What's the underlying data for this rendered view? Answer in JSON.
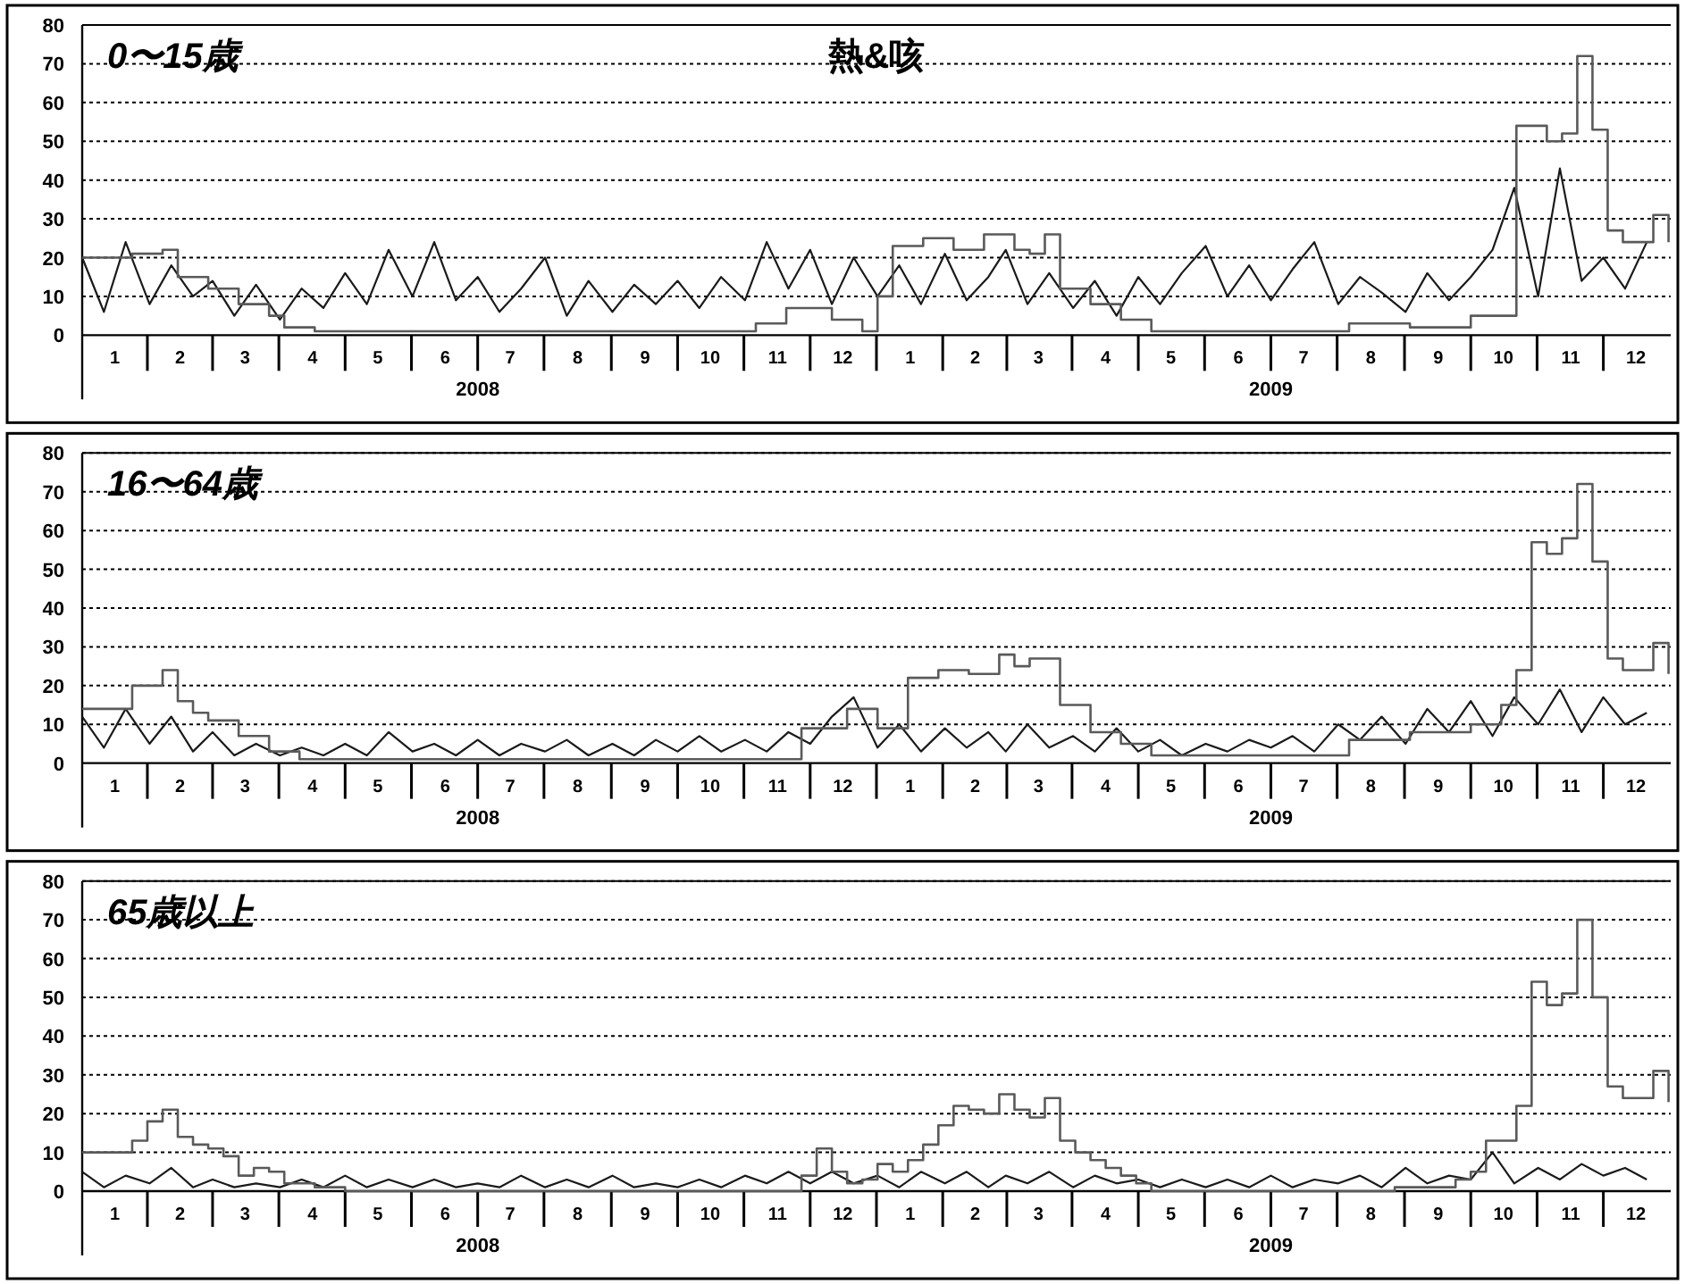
{
  "chart_data": [
    {
      "type": "line",
      "title": "0〜15歳",
      "subtitle": "熱&咳",
      "xlim": [
        "2008-01-01",
        "2010-01-01"
      ],
      "ylim": [
        0,
        80
      ],
      "yticks": [
        0,
        10,
        20,
        30,
        40,
        50,
        60,
        70,
        80
      ],
      "grid": "y",
      "xticks": [
        {
          "value": "2008-01-16",
          "label": "1"
        },
        {
          "value": "2008-02-15",
          "label": "2"
        },
        {
          "value": "2008-03-16",
          "label": "3"
        },
        {
          "value": "2008-04-16",
          "label": "4"
        },
        {
          "value": "2008-05-16",
          "label": "5"
        },
        {
          "value": "2008-06-16",
          "label": "6"
        },
        {
          "value": "2008-07-16",
          "label": "7"
        },
        {
          "value": "2008-08-16",
          "label": "8"
        },
        {
          "value": "2008-09-16",
          "label": "9"
        },
        {
          "value": "2008-10-16",
          "label": "10"
        },
        {
          "value": "2008-11-16",
          "label": "11"
        },
        {
          "value": "2008-12-16",
          "label": "12"
        },
        {
          "value": "2009-01-16",
          "label": "1"
        },
        {
          "value": "2009-02-15",
          "label": "2"
        },
        {
          "value": "2009-03-16",
          "label": "3"
        },
        {
          "value": "2009-04-16",
          "label": "4"
        },
        {
          "value": "2009-05-16",
          "label": "5"
        },
        {
          "value": "2009-06-16",
          "label": "6"
        },
        {
          "value": "2009-07-16",
          "label": "7"
        },
        {
          "value": "2009-08-16",
          "label": "8"
        },
        {
          "value": "2009-09-16",
          "label": "9"
        },
        {
          "value": "2009-10-16",
          "label": "10"
        },
        {
          "value": "2009-11-16",
          "label": "11"
        },
        {
          "value": "2009-12-16",
          "label": "12"
        }
      ],
      "annotations": [
        {
          "text": "2008",
          "x": "2008-07-01"
        },
        {
          "text": "2009",
          "x": "2009-07-01"
        }
      ],
      "series": [
        {
          "type": "line",
          "color": "#1a1a1a",
          "x": [
            "2008-01-01",
            "2008-01-11",
            "2008-01-21",
            "2008-02-01",
            "2008-02-11",
            "2008-02-21",
            "2008-03-01",
            "2008-03-11",
            "2008-03-21",
            "2008-04-01",
            "2008-04-11",
            "2008-04-21",
            "2008-05-01",
            "2008-05-11",
            "2008-05-21",
            "2008-06-01",
            "2008-06-11",
            "2008-06-21",
            "2008-07-01",
            "2008-07-11",
            "2008-07-21",
            "2008-08-01",
            "2008-08-11",
            "2008-08-21",
            "2008-09-01",
            "2008-09-11",
            "2008-09-21",
            "2008-10-01",
            "2008-10-11",
            "2008-10-21",
            "2008-11-01",
            "2008-11-11",
            "2008-11-21",
            "2008-12-01",
            "2008-12-11",
            "2008-12-21",
            "2009-01-01",
            "2009-01-11",
            "2009-01-21",
            "2009-02-01",
            "2009-02-11",
            "2009-02-21",
            "2009-03-01",
            "2009-03-11",
            "2009-03-21",
            "2009-04-01",
            "2009-04-11",
            "2009-04-21",
            "2009-05-01",
            "2009-05-11",
            "2009-05-21",
            "2009-06-01",
            "2009-06-11",
            "2009-06-21",
            "2009-07-01",
            "2009-07-11",
            "2009-07-21",
            "2009-08-01",
            "2009-08-11",
            "2009-08-21",
            "2009-09-01",
            "2009-09-11",
            "2009-09-21",
            "2009-10-01",
            "2009-10-11",
            "2009-10-21",
            "2009-11-01",
            "2009-11-11",
            "2009-11-21",
            "2009-12-01",
            "2009-12-11",
            "2009-12-21"
          ],
          "values": [
            20,
            6,
            24,
            8,
            18,
            10,
            14,
            5,
            13,
            4,
            12,
            7,
            16,
            8,
            22,
            10,
            24,
            9,
            15,
            6,
            12,
            20,
            5,
            14,
            6,
            13,
            8,
            14,
            7,
            15,
            9,
            24,
            12,
            22,
            8,
            20,
            10,
            18,
            8,
            21,
            9,
            15,
            22,
            8,
            16,
            7,
            14,
            5,
            15,
            8,
            16,
            23,
            10,
            18,
            9,
            17,
            24,
            8,
            15,
            11,
            6,
            16,
            9,
            15,
            22,
            38,
            10,
            43,
            14,
            20,
            12,
            24
          ]
        },
        {
          "type": "step",
          "color": "#5a5a5a",
          "x": [
            "2008-01-01",
            "2008-01-24",
            "2008-02-07",
            "2008-02-14",
            "2008-02-28",
            "2008-03-13",
            "2008-03-27",
            "2008-04-03",
            "2008-04-17",
            "2008-11-06",
            "2008-11-20",
            "2008-12-11",
            "2008-12-25",
            "2009-01-01",
            "2009-01-08",
            "2009-01-22",
            "2009-02-05",
            "2009-02-19",
            "2009-03-05",
            "2009-03-12",
            "2009-03-19",
            "2009-03-26",
            "2009-04-09",
            "2009-04-23",
            "2009-05-07",
            "2009-08-06",
            "2009-09-03",
            "2009-10-01",
            "2009-10-22",
            "2009-11-05",
            "2009-11-12",
            "2009-11-19",
            "2009-11-26",
            "2009-12-03",
            "2009-12-10",
            "2009-12-24",
            "2009-12-31"
          ],
          "values": [
            20,
            21,
            22,
            15,
            12,
            8,
            5,
            2,
            1,
            3,
            7,
            4,
            1,
            10,
            23,
            25,
            22,
            26,
            22,
            21,
            26,
            12,
            8,
            4,
            1,
            3,
            2,
            5,
            54,
            50,
            52,
            72,
            53,
            27,
            24,
            31,
            24
          ]
        }
      ]
    },
    {
      "type": "line",
      "title": "16〜64歳",
      "xlim": [
        "2008-01-01",
        "2010-01-01"
      ],
      "ylim": [
        0,
        80
      ],
      "yticks": [
        0,
        10,
        20,
        30,
        40,
        50,
        60,
        70,
        80
      ],
      "grid": "y",
      "xticks": [
        {
          "value": "2008-01-16",
          "label": "1"
        },
        {
          "value": "2008-02-15",
          "label": "2"
        },
        {
          "value": "2008-03-16",
          "label": "3"
        },
        {
          "value": "2008-04-16",
          "label": "4"
        },
        {
          "value": "2008-05-16",
          "label": "5"
        },
        {
          "value": "2008-06-16",
          "label": "6"
        },
        {
          "value": "2008-07-16",
          "label": "7"
        },
        {
          "value": "2008-08-16",
          "label": "8"
        },
        {
          "value": "2008-09-16",
          "label": "9"
        },
        {
          "value": "2008-10-16",
          "label": "10"
        },
        {
          "value": "2008-11-16",
          "label": "11"
        },
        {
          "value": "2008-12-16",
          "label": "12"
        },
        {
          "value": "2009-01-16",
          "label": "1"
        },
        {
          "value": "2009-02-15",
          "label": "2"
        },
        {
          "value": "2009-03-16",
          "label": "3"
        },
        {
          "value": "2009-04-16",
          "label": "4"
        },
        {
          "value": "2009-05-16",
          "label": "5"
        },
        {
          "value": "2009-06-16",
          "label": "6"
        },
        {
          "value": "2009-07-16",
          "label": "7"
        },
        {
          "value": "2009-08-16",
          "label": "8"
        },
        {
          "value": "2009-09-16",
          "label": "9"
        },
        {
          "value": "2009-10-16",
          "label": "10"
        },
        {
          "value": "2009-11-16",
          "label": "11"
        },
        {
          "value": "2009-12-16",
          "label": "12"
        }
      ],
      "annotations": [
        {
          "text": "2008",
          "x": "2008-07-01"
        },
        {
          "text": "2009",
          "x": "2009-07-01"
        }
      ],
      "series": [
        {
          "type": "line",
          "color": "#1a1a1a",
          "x": [
            "2008-01-01",
            "2008-01-11",
            "2008-01-21",
            "2008-02-01",
            "2008-02-11",
            "2008-02-21",
            "2008-03-01",
            "2008-03-11",
            "2008-03-21",
            "2008-04-01",
            "2008-04-11",
            "2008-04-21",
            "2008-05-01",
            "2008-05-11",
            "2008-05-21",
            "2008-06-01",
            "2008-06-11",
            "2008-06-21",
            "2008-07-01",
            "2008-07-11",
            "2008-07-21",
            "2008-08-01",
            "2008-08-11",
            "2008-08-21",
            "2008-09-01",
            "2008-09-11",
            "2008-09-21",
            "2008-10-01",
            "2008-10-11",
            "2008-10-21",
            "2008-11-01",
            "2008-11-11",
            "2008-11-21",
            "2008-12-01",
            "2008-12-11",
            "2008-12-21",
            "2009-01-01",
            "2009-01-11",
            "2009-01-21",
            "2009-02-01",
            "2009-02-11",
            "2009-02-21",
            "2009-03-01",
            "2009-03-11",
            "2009-03-21",
            "2009-04-01",
            "2009-04-11",
            "2009-04-21",
            "2009-05-01",
            "2009-05-11",
            "2009-05-21",
            "2009-06-01",
            "2009-06-11",
            "2009-06-21",
            "2009-07-01",
            "2009-07-11",
            "2009-07-21",
            "2009-08-01",
            "2009-08-11",
            "2009-08-21",
            "2009-09-01",
            "2009-09-11",
            "2009-09-21",
            "2009-10-01",
            "2009-10-11",
            "2009-10-21",
            "2009-11-01",
            "2009-11-11",
            "2009-11-21",
            "2009-12-01",
            "2009-12-11",
            "2009-12-21"
          ],
          "values": [
            12,
            4,
            14,
            5,
            12,
            3,
            8,
            2,
            5,
            2,
            4,
            2,
            5,
            2,
            8,
            3,
            5,
            2,
            6,
            2,
            5,
            3,
            6,
            2,
            5,
            2,
            6,
            3,
            7,
            3,
            6,
            3,
            8,
            5,
            12,
            17,
            4,
            10,
            3,
            9,
            4,
            8,
            3,
            10,
            4,
            7,
            3,
            9,
            3,
            6,
            2,
            5,
            3,
            6,
            4,
            7,
            3,
            10,
            6,
            12,
            5,
            14,
            8,
            16,
            7,
            17,
            10,
            19,
            8,
            17,
            10,
            13
          ]
        },
        {
          "type": "step",
          "color": "#5a5a5a",
          "x": [
            "2008-01-01",
            "2008-01-24",
            "2008-02-07",
            "2008-02-14",
            "2008-02-21",
            "2008-02-28",
            "2008-03-13",
            "2008-03-27",
            "2008-04-10",
            "2008-11-27",
            "2008-12-18",
            "2009-01-01",
            "2009-01-15",
            "2009-01-29",
            "2009-02-12",
            "2009-02-26",
            "2009-03-05",
            "2009-03-12",
            "2009-03-26",
            "2009-04-09",
            "2009-04-23",
            "2009-05-07",
            "2009-08-06",
            "2009-09-03",
            "2009-10-01",
            "2009-10-15",
            "2009-10-22",
            "2009-10-29",
            "2009-11-05",
            "2009-11-12",
            "2009-11-19",
            "2009-11-26",
            "2009-12-03",
            "2009-12-10",
            "2009-12-24",
            "2009-12-31"
          ],
          "values": [
            14,
            20,
            24,
            16,
            13,
            11,
            7,
            3,
            1,
            9,
            14,
            9,
            22,
            24,
            23,
            28,
            25,
            27,
            15,
            8,
            5,
            2,
            6,
            8,
            10,
            15,
            24,
            57,
            54,
            58,
            72,
            52,
            27,
            24,
            31,
            23
          ]
        }
      ]
    },
    {
      "type": "line",
      "title": "65歳以上",
      "xlim": [
        "2008-01-01",
        "2010-01-01"
      ],
      "ylim": [
        0,
        80
      ],
      "yticks": [
        0,
        10,
        20,
        30,
        40,
        50,
        60,
        70,
        80
      ],
      "grid": "y",
      "xticks": [
        {
          "value": "2008-01-16",
          "label": "1"
        },
        {
          "value": "2008-02-15",
          "label": "2"
        },
        {
          "value": "2008-03-16",
          "label": "3"
        },
        {
          "value": "2008-04-16",
          "label": "4"
        },
        {
          "value": "2008-05-16",
          "label": "5"
        },
        {
          "value": "2008-06-16",
          "label": "6"
        },
        {
          "value": "2008-07-16",
          "label": "7"
        },
        {
          "value": "2008-08-16",
          "label": "8"
        },
        {
          "value": "2008-09-16",
          "label": "9"
        },
        {
          "value": "2008-10-16",
          "label": "10"
        },
        {
          "value": "2008-11-16",
          "label": "11"
        },
        {
          "value": "2008-12-16",
          "label": "12"
        },
        {
          "value": "2009-01-16",
          "label": "1"
        },
        {
          "value": "2009-02-15",
          "label": "2"
        },
        {
          "value": "2009-03-16",
          "label": "3"
        },
        {
          "value": "2009-04-16",
          "label": "4"
        },
        {
          "value": "2009-05-16",
          "label": "5"
        },
        {
          "value": "2009-06-16",
          "label": "6"
        },
        {
          "value": "2009-07-16",
          "label": "7"
        },
        {
          "value": "2009-08-16",
          "label": "8"
        },
        {
          "value": "2009-09-16",
          "label": "9"
        },
        {
          "value": "2009-10-16",
          "label": "10"
        },
        {
          "value": "2009-11-16",
          "label": "11"
        },
        {
          "value": "2009-12-16",
          "label": "12"
        }
      ],
      "annotations": [
        {
          "text": "2008",
          "x": "2008-07-01"
        },
        {
          "text": "2009",
          "x": "2009-07-01"
        }
      ],
      "series": [
        {
          "type": "line",
          "color": "#1a1a1a",
          "x": [
            "2008-01-01",
            "2008-01-11",
            "2008-01-21",
            "2008-02-01",
            "2008-02-11",
            "2008-02-21",
            "2008-03-01",
            "2008-03-11",
            "2008-03-21",
            "2008-04-01",
            "2008-04-11",
            "2008-04-21",
            "2008-05-01",
            "2008-05-11",
            "2008-05-21",
            "2008-06-01",
            "2008-06-11",
            "2008-06-21",
            "2008-07-01",
            "2008-07-11",
            "2008-07-21",
            "2008-08-01",
            "2008-08-11",
            "2008-08-21",
            "2008-09-01",
            "2008-09-11",
            "2008-09-21",
            "2008-10-01",
            "2008-10-11",
            "2008-10-21",
            "2008-11-01",
            "2008-11-11",
            "2008-11-21",
            "2008-12-01",
            "2008-12-11",
            "2008-12-21",
            "2009-01-01",
            "2009-01-11",
            "2009-01-21",
            "2009-02-01",
            "2009-02-11",
            "2009-02-21",
            "2009-03-01",
            "2009-03-11",
            "2009-03-21",
            "2009-04-01",
            "2009-04-11",
            "2009-04-21",
            "2009-05-01",
            "2009-05-11",
            "2009-05-21",
            "2009-06-01",
            "2009-06-11",
            "2009-06-21",
            "2009-07-01",
            "2009-07-11",
            "2009-07-21",
            "2009-08-01",
            "2009-08-11",
            "2009-08-21",
            "2009-09-01",
            "2009-09-11",
            "2009-09-21",
            "2009-10-01",
            "2009-10-11",
            "2009-10-21",
            "2009-11-01",
            "2009-11-11",
            "2009-11-21",
            "2009-12-01",
            "2009-12-11",
            "2009-12-21"
          ],
          "values": [
            5,
            1,
            4,
            2,
            6,
            1,
            3,
            1,
            2,
            1,
            3,
            1,
            4,
            1,
            3,
            1,
            3,
            1,
            2,
            1,
            4,
            1,
            3,
            1,
            4,
            1,
            2,
            1,
            3,
            1,
            4,
            2,
            5,
            2,
            5,
            2,
            4,
            1,
            5,
            2,
            5,
            1,
            4,
            2,
            5,
            1,
            4,
            2,
            3,
            1,
            3,
            1,
            3,
            1,
            4,
            1,
            3,
            2,
            4,
            1,
            6,
            2,
            4,
            3,
            10,
            2,
            6,
            3,
            7,
            4,
            6,
            3
          ]
        },
        {
          "type": "step",
          "color": "#5a5a5a",
          "x": [
            "2008-01-01",
            "2008-01-24",
            "2008-01-31",
            "2008-02-07",
            "2008-02-14",
            "2008-02-21",
            "2008-02-28",
            "2008-03-06",
            "2008-03-13",
            "2008-03-20",
            "2008-03-27",
            "2008-04-03",
            "2008-04-17",
            "2008-05-01",
            "2008-11-27",
            "2008-12-04",
            "2008-12-11",
            "2008-12-18",
            "2008-12-25",
            "2009-01-01",
            "2009-01-08",
            "2009-01-15",
            "2009-01-22",
            "2009-01-29",
            "2009-02-05",
            "2009-02-12",
            "2009-02-19",
            "2009-02-26",
            "2009-03-05",
            "2009-03-12",
            "2009-03-19",
            "2009-03-26",
            "2009-04-02",
            "2009-04-09",
            "2009-04-16",
            "2009-04-23",
            "2009-04-30",
            "2009-05-07",
            "2009-08-27",
            "2009-09-24",
            "2009-10-01",
            "2009-10-08",
            "2009-10-22",
            "2009-10-29",
            "2009-11-05",
            "2009-11-12",
            "2009-11-19",
            "2009-11-26",
            "2009-12-03",
            "2009-12-10",
            "2009-12-24",
            "2009-12-31"
          ],
          "values": [
            10,
            13,
            18,
            21,
            14,
            12,
            11,
            9,
            4,
            6,
            5,
            2,
            1,
            0,
            4,
            11,
            5,
            2,
            3,
            7,
            5,
            8,
            12,
            17,
            22,
            21,
            20,
            25,
            21,
            19,
            24,
            13,
            10,
            8,
            6,
            4,
            2,
            0,
            1,
            3,
            5,
            13,
            22,
            54,
            48,
            51,
            70,
            50,
            27,
            24,
            31,
            23
          ]
        }
      ]
    }
  ]
}
